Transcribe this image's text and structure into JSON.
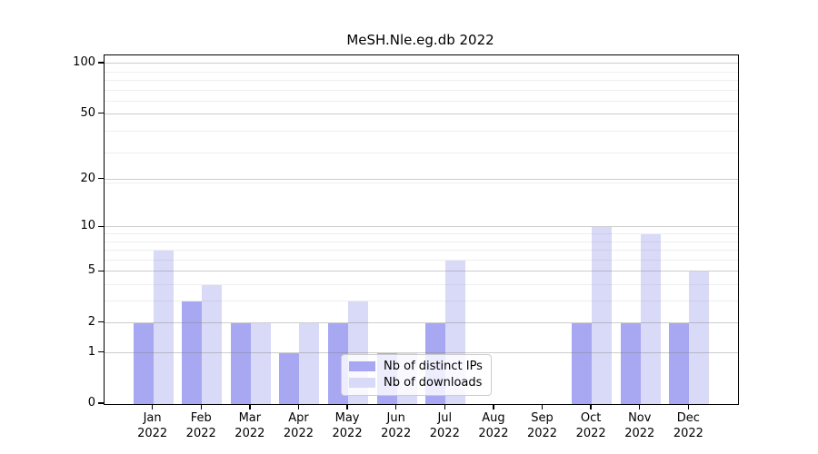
{
  "figure": {
    "title": "MeSH.Nle.eg.db 2022"
  },
  "chart_data": {
    "type": "bar",
    "title": "MeSH.Nle.eg.db 2022",
    "categories": [
      "Jan 2022",
      "Feb 2022",
      "Mar 2022",
      "Apr 2022",
      "May 2022",
      "Jun 2022",
      "Jul 2022",
      "Aug 2022",
      "Sep 2022",
      "Oct 2022",
      "Nov 2022",
      "Dec 2022"
    ],
    "series": [
      {
        "name": "Nb of distinct IPs",
        "color": "#a7a7f2",
        "values": [
          2,
          3,
          2,
          1,
          2,
          1,
          2,
          0,
          0,
          2,
          2,
          2
        ]
      },
      {
        "name": "Nb of downloads",
        "color": "#d9d9f8",
        "values": [
          7,
          4,
          2,
          2,
          3,
          1,
          6,
          0,
          0,
          10,
          9,
          5
        ]
      }
    ],
    "xlabel": "",
    "ylabel": "",
    "y_scale": "log10(1+x)",
    "y_ticks": [
      0,
      1,
      2,
      5,
      10,
      20,
      50,
      100
    ],
    "y_minor_ticks": [
      3,
      4,
      6,
      7,
      8,
      9,
      19,
      29,
      39,
      59,
      69,
      79,
      89
    ],
    "ylim": [
      0,
      112
    ],
    "grid": true,
    "legend_position": "lower center"
  },
  "colors": {
    "bar_distinct_ips": "#a7a7f2",
    "bar_downloads": "#d9d9f8",
    "grid_major": "#cccccc",
    "grid_minor": "#ebebeb",
    "axis": "#000000",
    "background": "#ffffff",
    "legend_border": "#cccccc"
  }
}
